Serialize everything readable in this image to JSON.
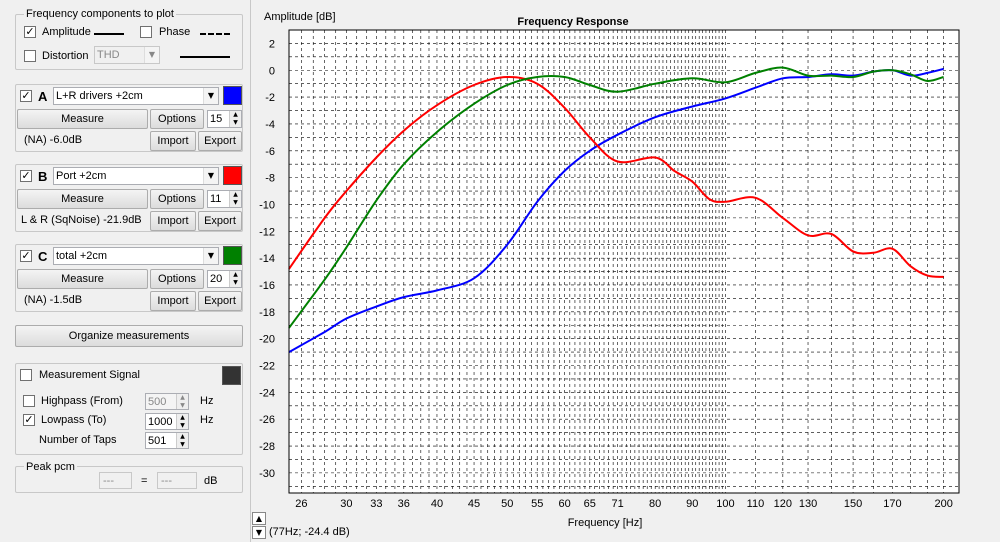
{
  "freq_group": {
    "title": "Frequency components to plot",
    "amplitude": {
      "label": "Amplitude",
      "checked": "✓"
    },
    "phase": {
      "label": "Phase",
      "checked": ""
    },
    "distortion": {
      "label": "Distortion",
      "checked": "",
      "value": "THD"
    }
  },
  "measurements": [
    {
      "letter": "A",
      "checked": "✓",
      "name": "L+R drivers +2cm",
      "color": "#0000ff",
      "measure": "Measure",
      "options": "Options",
      "smoothing": "15",
      "info": "(NA) -6.0dB",
      "import": "Import",
      "export": "Export"
    },
    {
      "letter": "B",
      "checked": "✓",
      "name": "Port +2cm",
      "color": "#ff0000",
      "measure": "Measure",
      "options": "Options",
      "smoothing": "11",
      "info": "L & R (SqNoise) -21.9dB",
      "import": "Import",
      "export": "Export"
    },
    {
      "letter": "C",
      "checked": "✓",
      "name": "total +2cm",
      "color": "#008000",
      "measure": "Measure",
      "options": "Options",
      "smoothing": "20",
      "info": "(NA) -1.5dB",
      "import": "Import",
      "export": "Export"
    }
  ],
  "organize_label": "Organize measurements",
  "signal": {
    "label": "Measurement Signal",
    "checked": "",
    "swatch_color": "#333333",
    "highpass": {
      "label": "Highpass (From)",
      "checked": "",
      "value": "500",
      "unit": "Hz"
    },
    "lowpass": {
      "label": "Lowpass (To)",
      "checked": "✓",
      "value": "1000",
      "unit": "Hz"
    },
    "taps": {
      "label": "Number of Taps",
      "value": "501"
    }
  },
  "peak": {
    "title": "Peak pcm",
    "left": "---",
    "eq": "=",
    "right": "---",
    "unit": "dB"
  },
  "status": {
    "readout": "(77Hz; -24.4 dB)",
    "up": "▲",
    "down": "▼"
  },
  "chart_data": {
    "type": "line",
    "title": "Frequency Response",
    "ylabel": "Amplitude [dB]",
    "xlabel": "Frequency [Hz]",
    "x_scale": "log",
    "xlim": [
      25,
      210
    ],
    "ylim": [
      -31.5,
      3
    ],
    "grid": true,
    "y_ticks": [
      2,
      0,
      -2,
      -4,
      -6,
      -8,
      -10,
      -12,
      -14,
      -16,
      -18,
      -20,
      -22,
      -24,
      -26,
      -28,
      -30
    ],
    "x_ticks": [
      26,
      30,
      33,
      36,
      40,
      45,
      50,
      55,
      60,
      65,
      71,
      80,
      90,
      100,
      110,
      120,
      130,
      150,
      170,
      200
    ],
    "series": [
      {
        "color": "#0000ff",
        "x": [
          25,
          28,
          30,
          33,
          36,
          40,
          45,
          50,
          55,
          60,
          65,
          71,
          80,
          90,
          100,
          110,
          120,
          130,
          140,
          150,
          160,
          170,
          180,
          190,
          200
        ],
        "y": [
          -21,
          -19.5,
          -18.5,
          -17.6,
          -16.9,
          -16.4,
          -15.5,
          -13,
          -9.8,
          -7.5,
          -6,
          -4.8,
          -3.5,
          -2.7,
          -2.1,
          -1.3,
          -0.6,
          -0.5,
          -0.3,
          -0.4,
          -0.1,
          0,
          -0.4,
          -0.2,
          0.1
        ]
      },
      {
        "color": "#ff0000",
        "x": [
          25,
          28,
          30,
          33,
          36,
          40,
          45,
          50,
          55,
          60,
          65,
          71,
          80,
          85,
          90,
          95,
          100,
          110,
          120,
          130,
          140,
          150,
          160,
          170,
          180,
          190,
          200
        ],
        "y": [
          -14.8,
          -11,
          -9,
          -6.5,
          -4.5,
          -2.6,
          -1.1,
          -0.5,
          -1,
          -2.8,
          -5,
          -6.8,
          -6.5,
          -7.5,
          -8.3,
          -9.6,
          -9.8,
          -9.5,
          -11,
          -12.3,
          -12.2,
          -13.5,
          -13.6,
          -13.3,
          -14.6,
          -15.3,
          -15.4
        ]
      },
      {
        "color": "#008000",
        "x": [
          25,
          28,
          30,
          33,
          36,
          40,
          45,
          50,
          55,
          60,
          65,
          71,
          80,
          90,
          100,
          110,
          120,
          130,
          140,
          150,
          160,
          170,
          180,
          190,
          200
        ],
        "y": [
          -19.2,
          -15.6,
          -13.2,
          -9.7,
          -7,
          -4.6,
          -2.5,
          -1.1,
          -0.5,
          -0.5,
          -1.1,
          -1.6,
          -1,
          -0.6,
          -0.9,
          -0.2,
          0.2,
          -0.4,
          -0.4,
          -0.5,
          -0.1,
          0,
          -0.3,
          -0.8,
          -0.5
        ]
      }
    ]
  }
}
